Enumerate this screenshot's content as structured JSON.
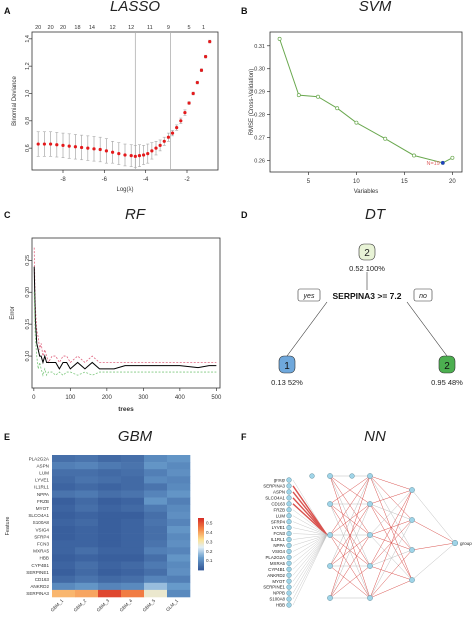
{
  "panels": {
    "A": {
      "letter": "A",
      "title": "LASSO"
    },
    "B": {
      "letter": "B",
      "title": "SVM"
    },
    "C": {
      "letter": "C",
      "title": "RF"
    },
    "D": {
      "letter": "D",
      "title": "DT"
    },
    "E": {
      "letter": "E",
      "title": "GBM"
    },
    "F": {
      "letter": "F",
      "title": "NN"
    }
  },
  "chart_data": [
    {
      "id": "lasso",
      "type": "scatter",
      "title": "LASSO",
      "xlabel": "Log(λ)",
      "ylabel": "Binomial Deviance",
      "xlim": [
        -9.5,
        -0.5
      ],
      "ylim": [
        0.44,
        1.45
      ],
      "xticks": [
        -8,
        -6,
        -4,
        -2
      ],
      "yticks": [
        0.6,
        0.8,
        1.0,
        1.2,
        1.4
      ],
      "top_axis_labels": [
        "20",
        "20",
        "20",
        "18",
        "14",
        "12",
        "12",
        "11",
        "9",
        "5",
        "1"
      ],
      "top_axis_positions": [
        -9.2,
        -8.6,
        -8.0,
        -7.3,
        -6.6,
        -5.6,
        -4.7,
        -3.8,
        -2.9,
        -1.9,
        -1.2
      ],
      "vlines": [
        -4.5,
        -2.8
      ],
      "points": {
        "x": [
          -9.2,
          -8.9,
          -8.6,
          -8.3,
          -8.0,
          -7.7,
          -7.4,
          -7.1,
          -6.8,
          -6.5,
          -6.2,
          -5.9,
          -5.6,
          -5.3,
          -5.0,
          -4.7,
          -4.5,
          -4.3,
          -4.1,
          -3.9,
          -3.7,
          -3.5,
          -3.3,
          -3.1,
          -2.9,
          -2.7,
          -2.5,
          -2.3,
          -2.1,
          -1.9,
          -1.7,
          -1.5,
          -1.3,
          -1.1,
          -0.9
        ],
        "y": [
          0.63,
          0.63,
          0.63,
          0.625,
          0.62,
          0.615,
          0.61,
          0.605,
          0.6,
          0.595,
          0.59,
          0.58,
          0.57,
          0.56,
          0.55,
          0.545,
          0.54,
          0.545,
          0.55,
          0.56,
          0.58,
          0.6,
          0.62,
          0.65,
          0.68,
          0.71,
          0.75,
          0.8,
          0.86,
          0.93,
          1.0,
          1.08,
          1.17,
          1.27,
          1.38
        ],
        "err": [
          0.09,
          0.09,
          0.09,
          0.09,
          0.09,
          0.09,
          0.09,
          0.09,
          0.09,
          0.09,
          0.09,
          0.09,
          0.08,
          0.08,
          0.08,
          0.08,
          0.08,
          0.08,
          0.07,
          0.07,
          0.06,
          0.05,
          0.04,
          0.03,
          0.03,
          0.02,
          0.02,
          0.02,
          0.02,
          0.01,
          0.01,
          0.01,
          0.01,
          0.01,
          0.01
        ]
      },
      "colors": {
        "point": "#e41a1c",
        "error": "#a8a8a8",
        "vline": "#b0b0b0"
      }
    },
    {
      "id": "svm",
      "type": "line",
      "title": "SVM",
      "xlabel": "Variables",
      "ylabel": "RMSE (Cross-Validation)",
      "xlim": [
        1,
        21
      ],
      "ylim": [
        0.255,
        0.316
      ],
      "xticks": [
        5,
        10,
        15,
        20
      ],
      "yticks": [
        0.26,
        0.27,
        0.28,
        0.29,
        0.3,
        0.31
      ],
      "x": [
        2,
        4,
        6,
        8,
        10,
        13,
        16,
        19,
        20
      ],
      "y": [
        0.313,
        0.2885,
        0.2878,
        0.2828,
        0.2765,
        0.2695,
        0.2622,
        0.259,
        0.2612
      ],
      "best": {
        "x": 19,
        "y": 0.259,
        "label": "N=19"
      },
      "colors": {
        "line": "#6aa84f",
        "best": "#1f3fbf",
        "best_label": "#e06666"
      }
    },
    {
      "id": "rf",
      "type": "line",
      "title": "RF",
      "xlabel": "trees",
      "ylabel": "Error",
      "xlim": [
        -5,
        510
      ],
      "ylim": [
        0.05,
        0.285
      ],
      "xticks": [
        0,
        100,
        200,
        300,
        400,
        500
      ],
      "yticks": [
        0.1,
        0.15,
        0.2,
        0.25
      ],
      "series": [
        {
          "x": [
            1,
            4,
            8,
            12,
            16,
            20,
            25,
            30,
            35,
            40,
            50,
            60,
            70,
            80,
            90,
            100,
            120,
            140,
            160,
            180,
            200,
            220,
            250,
            300,
            350,
            400,
            450,
            480,
            500
          ],
          "y": [
            0.27,
            0.18,
            0.14,
            0.13,
            0.11,
            0.12,
            0.1,
            0.11,
            0.1,
            0.09,
            0.1,
            0.1,
            0.09,
            0.1,
            0.1,
            0.09,
            0.1,
            0.09,
            0.1,
            0.09,
            0.09,
            0.09,
            0.09,
            0.09,
            0.09,
            0.09,
            0.09,
            0.09,
            0.09
          ],
          "color": "#e06680"
        },
        {
          "x": [
            1,
            4,
            8,
            12,
            16,
            20,
            25,
            30,
            35,
            40,
            50,
            60,
            70,
            80,
            90,
            100,
            120,
            140,
            160,
            180,
            200,
            220,
            250,
            300,
            350,
            400,
            450,
            480,
            500
          ],
          "y": [
            0.24,
            0.16,
            0.12,
            0.11,
            0.1,
            0.1,
            0.09,
            0.1,
            0.09,
            0.09,
            0.09,
            0.09,
            0.08,
            0.09,
            0.09,
            0.08,
            0.09,
            0.08,
            0.09,
            0.08,
            0.08,
            0.08,
            0.085,
            0.085,
            0.085,
            0.085,
            0.082,
            0.085,
            0.085
          ],
          "color": "#000000"
        },
        {
          "x": [
            1,
            4,
            8,
            12,
            16,
            20,
            25,
            30,
            35,
            40,
            50,
            60,
            70,
            80,
            90,
            100,
            120,
            140,
            160,
            180,
            200,
            220,
            250,
            300,
            350,
            400,
            450,
            480,
            500
          ],
          "y": [
            0.2,
            0.13,
            0.1,
            0.08,
            0.09,
            0.08,
            0.07,
            0.08,
            0.07,
            0.075,
            0.075,
            0.07,
            0.075,
            0.07,
            0.075,
            0.075,
            0.07,
            0.075,
            0.07,
            0.075,
            0.075,
            0.075,
            0.075,
            0.075,
            0.075,
            0.075,
            0.075,
            0.075,
            0.075
          ],
          "color": "#7fc97f"
        }
      ]
    },
    {
      "id": "dt",
      "type": "diagram",
      "title": "DT",
      "root": {
        "class": "2",
        "value": "0.52",
        "percent": "100%"
      },
      "split": {
        "condition": "SERPINA3 >= 7.2",
        "yes": "yes",
        "no": "no"
      },
      "left": {
        "class": "1",
        "value": "0.13",
        "percent": "52%"
      },
      "right": {
        "class": "2",
        "value": "0.95",
        "percent": "48%"
      },
      "colors": {
        "root": "#e8f3d6",
        "left": "#6fa8dc",
        "right": "#4caf50"
      }
    },
    {
      "id": "gbm",
      "type": "heatmap",
      "title": "GBM",
      "ylabel": "Feature",
      "rows": [
        "PLA2G2A",
        "ASPN",
        "LUM",
        "LYVE1",
        "IL1RL1",
        "NPPA",
        "FRZB",
        "MYOT",
        "SLCO4A1",
        "S100A8",
        "VSIG4",
        "SFRP4",
        "FCN3",
        "MXRA5",
        "HBB",
        "CYP4B1",
        "SERPINE1",
        "CD163",
        "ANKRD2",
        "SERPINA3"
      ],
      "cols": [
        "GBM_1",
        "GBM_2",
        "GBM_3",
        "GBM_4",
        "GBM_5",
        "GLM_1"
      ],
      "values": [
        [
          0.05,
          0.06,
          0.04,
          0.05,
          0.1,
          0.12
        ],
        [
          0.08,
          0.09,
          0.07,
          0.06,
          0.12,
          0.1
        ],
        [
          0.05,
          0.05,
          0.04,
          0.05,
          0.08,
          0.11
        ],
        [
          0.04,
          0.06,
          0.05,
          0.04,
          0.1,
          0.09
        ],
        [
          0.03,
          0.04,
          0.03,
          0.04,
          0.06,
          0.1
        ],
        [
          0.06,
          0.07,
          0.05,
          0.06,
          0.09,
          0.12
        ],
        [
          0.02,
          0.04,
          0.02,
          0.03,
          0.12,
          0.08
        ],
        [
          0.03,
          0.05,
          0.03,
          0.04,
          0.07,
          0.1
        ],
        [
          0.02,
          0.03,
          0.02,
          0.02,
          0.05,
          0.11
        ],
        [
          0.03,
          0.04,
          0.02,
          0.03,
          0.06,
          0.09
        ],
        [
          0.02,
          0.03,
          0.02,
          0.03,
          0.05,
          0.12
        ],
        [
          0.02,
          0.03,
          0.02,
          0.03,
          0.05,
          0.1
        ],
        [
          0.03,
          0.03,
          0.02,
          0.03,
          0.06,
          0.11
        ],
        [
          0.03,
          0.05,
          0.03,
          0.03,
          0.08,
          0.09
        ],
        [
          0.02,
          0.03,
          0.02,
          0.02,
          0.05,
          0.12
        ],
        [
          0.03,
          0.05,
          0.03,
          0.04,
          0.07,
          0.1
        ],
        [
          0.02,
          0.04,
          0.02,
          0.03,
          0.05,
          0.11
        ],
        [
          0.04,
          0.06,
          0.04,
          0.05,
          0.09,
          0.08
        ],
        [
          0.1,
          0.12,
          0.09,
          0.1,
          0.18,
          0.13
        ],
        [
          0.38,
          0.4,
          0.52,
          0.45,
          0.28,
          0.1
        ]
      ],
      "legend_ticks": [
        0.1,
        0.2,
        0.3,
        0.4,
        0.5
      ],
      "vmin": 0.0,
      "vmax": 0.55
    },
    {
      "id": "nn",
      "type": "diagram",
      "title": "NN",
      "inputs": [
        "group",
        "SERPINA3",
        "ASPN",
        "SLCO4A1",
        "CD163",
        "FRZB",
        "LUM",
        "SFRP4",
        "LYVE1",
        "FCN3",
        "IL1RL1",
        "NPPA",
        "VSIG4",
        "PLA2G2A",
        "MXRA5",
        "CYP4B1",
        "ANKRD2",
        "MYOT",
        "SERPINE1",
        "NPPB",
        "S100A8",
        "HBB"
      ],
      "hidden1_count": 5,
      "hidden2_count": 5,
      "output": "group",
      "colors": {
        "node": "#9fd4e8",
        "pos": "#d9534f",
        "neg": "#bdbdbd"
      }
    }
  ]
}
